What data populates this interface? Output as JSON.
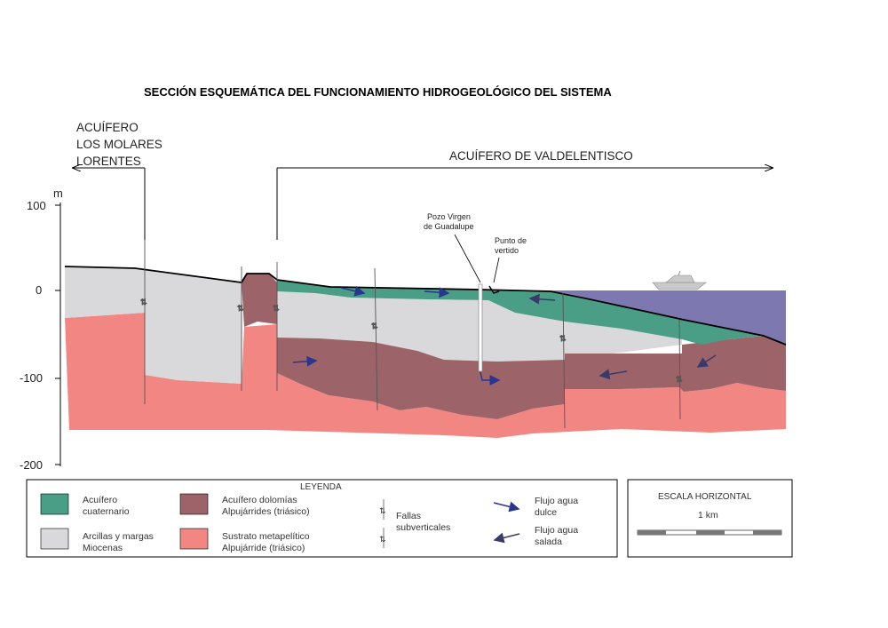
{
  "title": "SECCIÓN ESQUEMÁTICA DEL FUNCIONAMIENTO HIDROGEOLÓGICO DEL SISTEMA",
  "aquifer_left": [
    "ACUÍFERO",
    "LOS MOLARES",
    "LORENTES"
  ],
  "aquifer_right": "ACUÍFERO DE VALDELENTISCO",
  "axis": {
    "unit": "m",
    "ticks": [
      "100",
      "0",
      "-100",
      "-200"
    ]
  },
  "well_label": [
    "Pozo Virgen",
    "de Guadalupe"
  ],
  "discharge_label": [
    "Punto de",
    "vertido"
  ],
  "legend": {
    "title": "LEYENDA",
    "quaternary": [
      "Acuífero",
      "cuaternario"
    ],
    "dolomite": [
      "Acuífero dolomías",
      "Alpujárrides (triásico)"
    ],
    "faults": [
      "Fallas",
      "subverticales"
    ],
    "fresh_flow": [
      "Flujo agua",
      "dulce"
    ],
    "clays": [
      "Arcillas y margas",
      "Miocenas"
    ],
    "substrate": [
      "Sustrato metapelítico",
      "Alpujárride (triásico)"
    ],
    "salt_flow": [
      "Flujo agua",
      "salada"
    ]
  },
  "scale": {
    "title": "ESCALA HORIZONTAL",
    "value": "1 km"
  },
  "colors": {
    "quaternary": "#4a9e86",
    "clay": "#d9d9db",
    "dolomite": "#9c6468",
    "substrate": "#f28683",
    "sea": "#7e78b0",
    "fresh_arrow": "#2a3590",
    "salt_arrow": "#3a3a6a"
  }
}
